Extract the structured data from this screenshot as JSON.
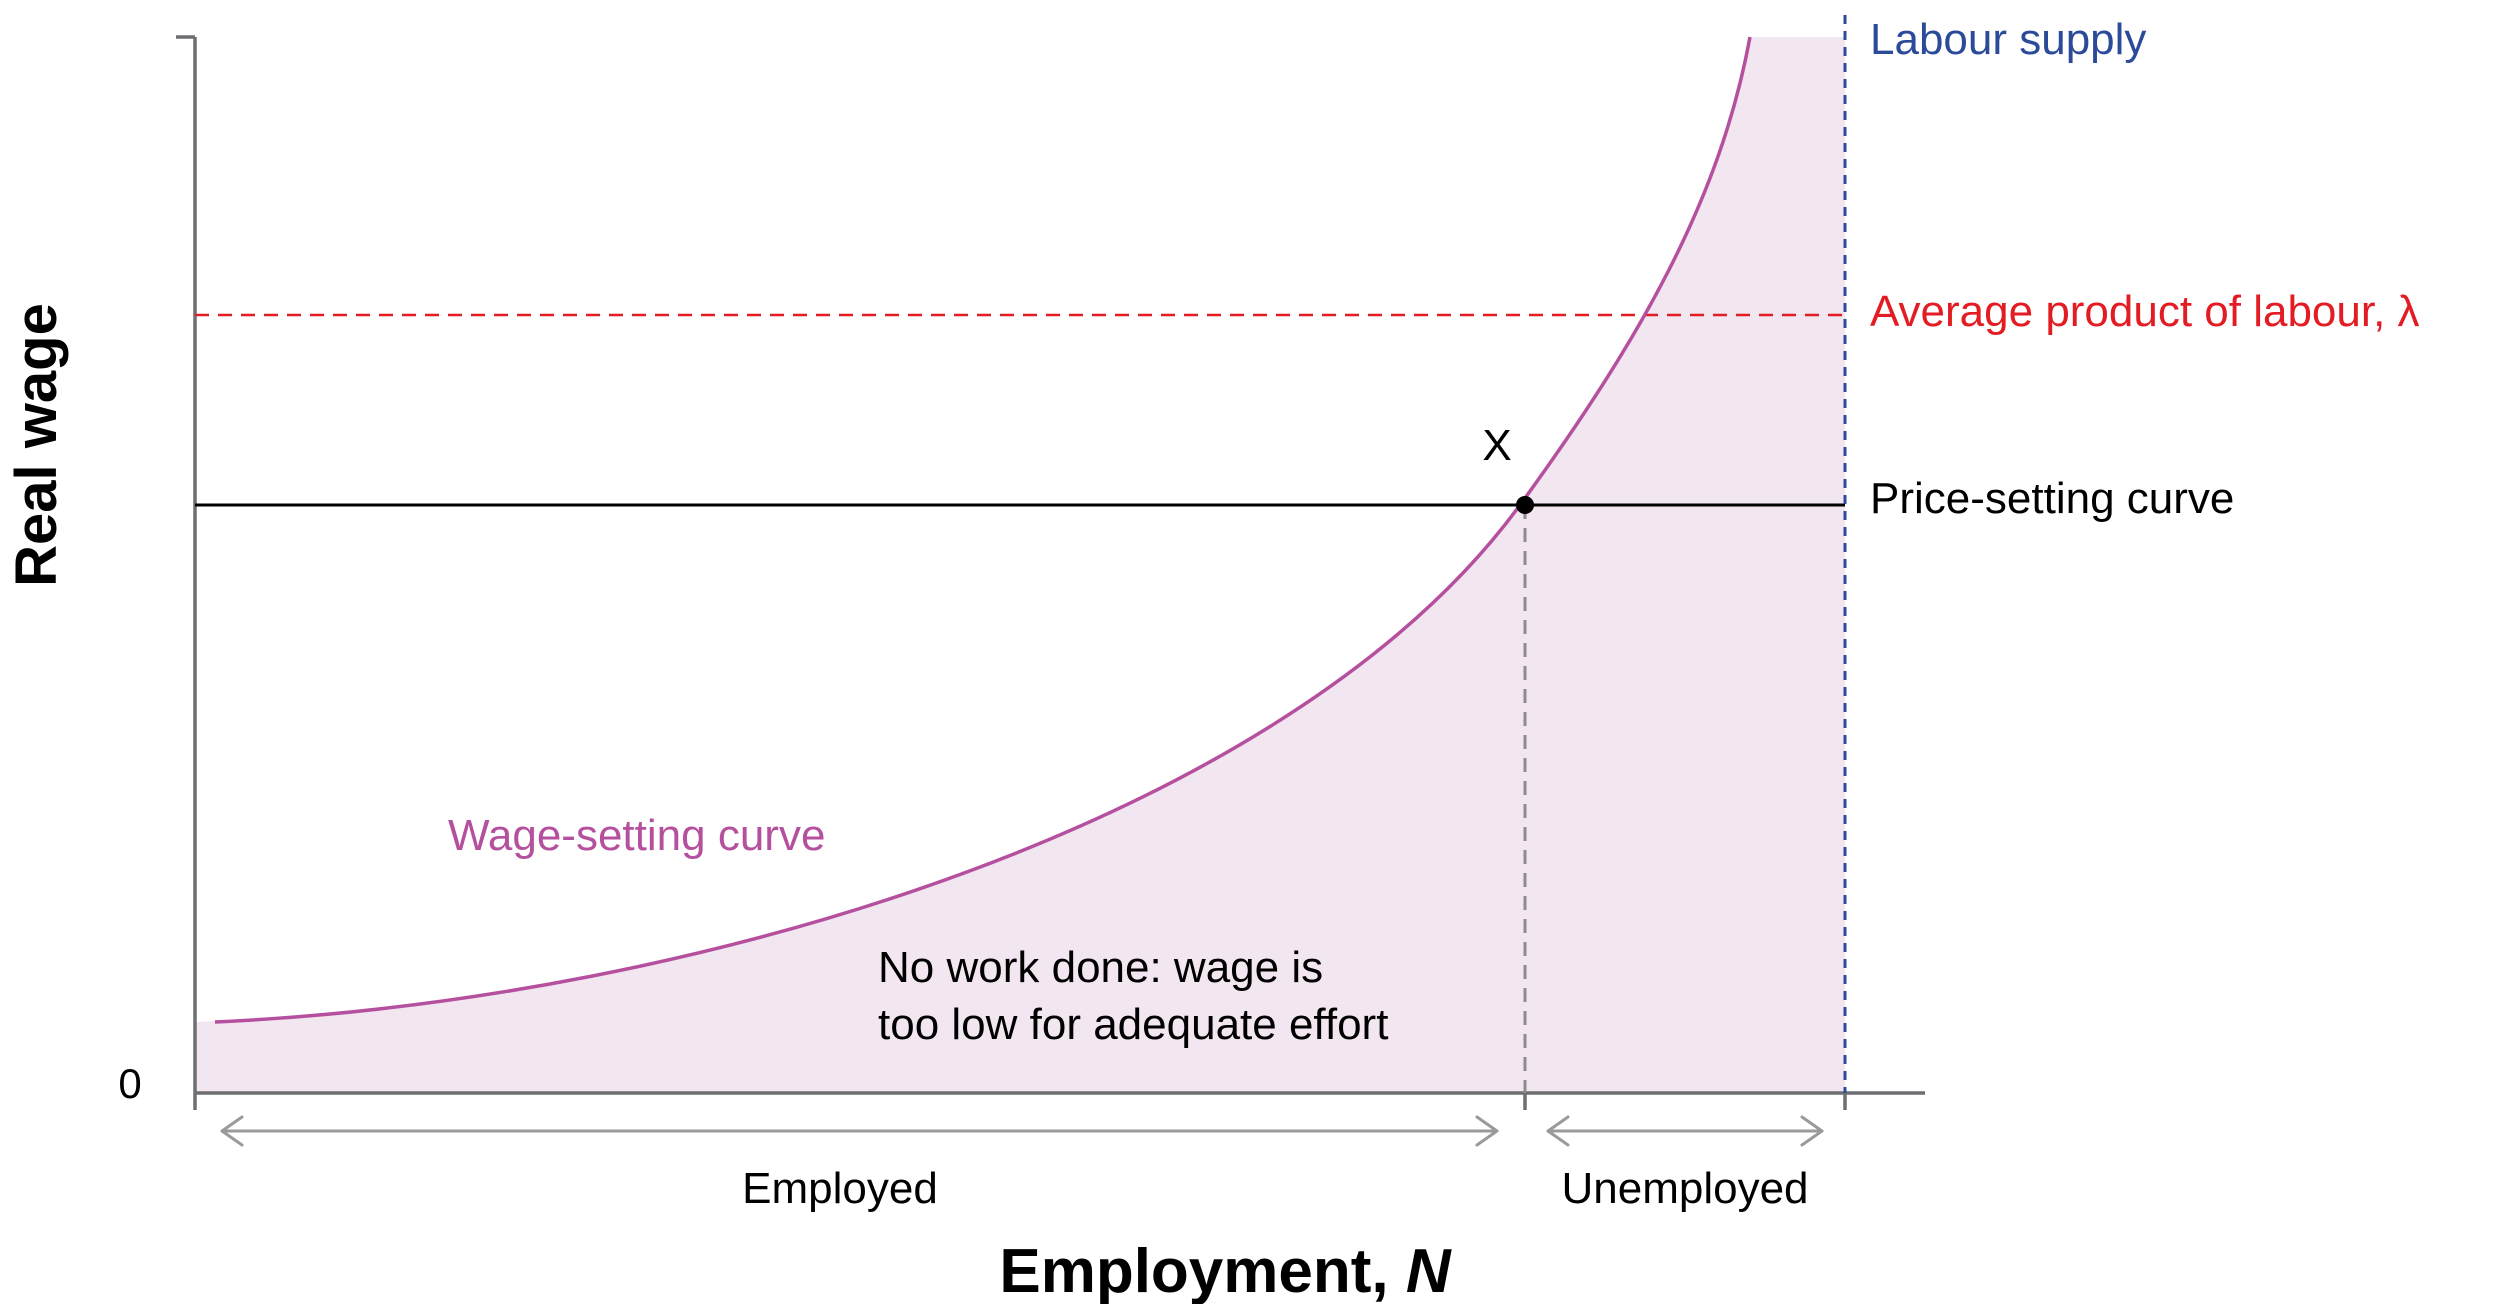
{
  "labels": {
    "y_axis": "Real wage",
    "x_axis_prefix": "Employment, ",
    "x_axis_var": "N",
    "origin": "0",
    "labour_supply": "Labour supply",
    "avg_product": "Average product of labour, λ",
    "price_setting": "Price-setting curve",
    "wage_setting": "Wage-setting curve",
    "point_x": "X",
    "no_work_line1": "No work done: wage is",
    "no_work_line2": "too low for adequate effort",
    "employed": "Employed",
    "unemployed": "Unemployed"
  },
  "colors": {
    "axis": "#6d6e71",
    "wage_curve": "#b5509e",
    "shade": "#f2e6f1",
    "labour_supply": "#2c4a9a",
    "avg_product": "#e31b23",
    "price_setting": "#000000",
    "guide": "#8c8c8c",
    "arrow": "#9a9a9a",
    "text": "#000000"
  },
  "icons": {
    "employed_arrow": "double-headed-arrow",
    "unemployed_arrow": "double-headed-arrow",
    "equilibrium_marker": "filled-dot"
  }
}
